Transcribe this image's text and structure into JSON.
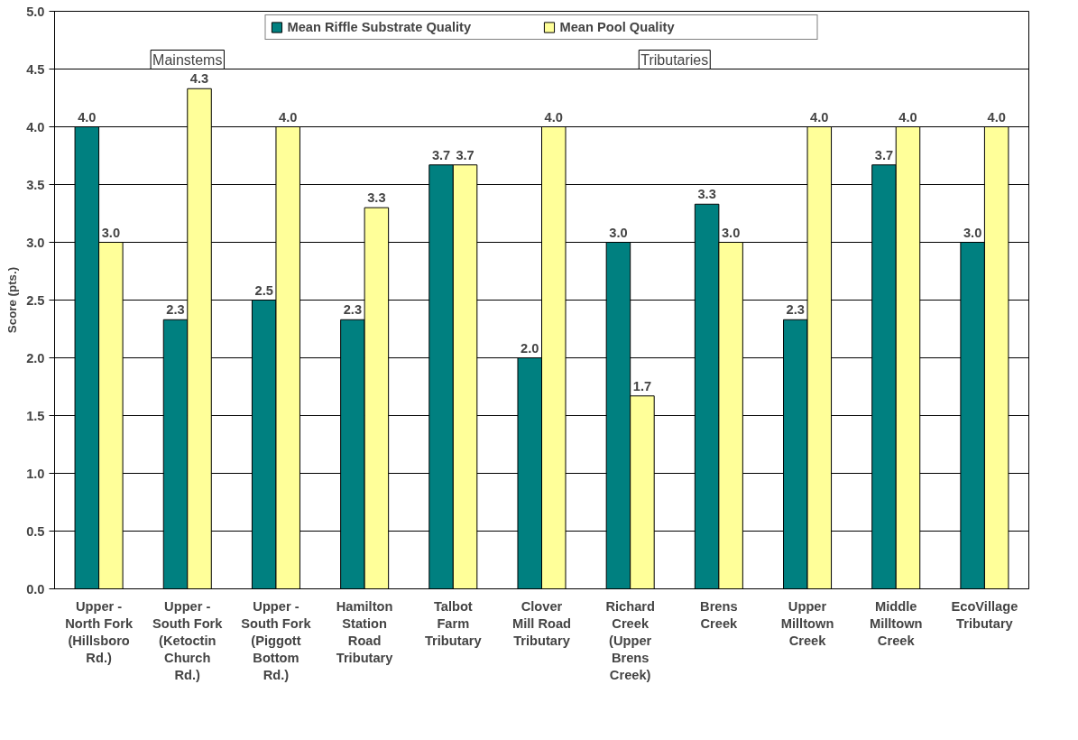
{
  "chart_data": {
    "type": "bar",
    "ylabel": "Score (pts.)",
    "categories": [
      "Upper - North Fork (Hillsboro Rd.)",
      "Upper - South Fork (Ketoctin Church Rd.)",
      "Upper - South Fork (Piggott Bottom Rd.)",
      "Hamilton Station Road Tributary",
      "Talbot Farm Tributary",
      "Clover Mill Road Tributary",
      "Richard Creek (Upper Brens Creek)",
      "Brens Creek",
      "Upper Milltown Creek",
      "Middle Milltown Creek",
      "EcoVillage Tributary"
    ],
    "series": [
      {
        "name": "Mean Riffle Substrate Quality",
        "color": "#008080",
        "values": [
          4.0,
          2.33,
          2.5,
          2.33,
          3.67,
          2.0,
          3.0,
          3.33,
          2.33,
          3.67,
          3.0
        ],
        "value_labels": [
          "4.0",
          "2.3",
          "2.5",
          "2.3",
          "3.7",
          "2.0",
          "3.0",
          "3.3",
          "2.3",
          "3.7",
          "3.0"
        ]
      },
      {
        "name": "Mean Pool Quality",
        "color": "#ffff99",
        "values": [
          3.0,
          4.33,
          4.0,
          3.3,
          3.67,
          4.0,
          1.67,
          3.0,
          4.0,
          4.0,
          4.0
        ],
        "value_labels": [
          "3.0",
          "4.3",
          "4.0",
          "3.3",
          "3.7",
          "4.0",
          "1.7",
          "3.0",
          "4.0",
          "4.0",
          "4.0"
        ]
      }
    ],
    "ylim": [
      0,
      5
    ],
    "yticks": [
      {
        "value": 0,
        "label": "0.0"
      },
      {
        "value": 0.5,
        "label": "0.5"
      },
      {
        "value": 1,
        "label": "1.0"
      },
      {
        "value": 1.5,
        "label": "1.5"
      },
      {
        "value": 2,
        "label": "2.0"
      },
      {
        "value": 2.5,
        "label": "2.5"
      },
      {
        "value": 3,
        "label": "3.0"
      },
      {
        "value": 3.5,
        "label": "3.5"
      },
      {
        "value": 4,
        "label": "4.0"
      },
      {
        "value": 4.5,
        "label": "4.5"
      },
      {
        "value": 5,
        "label": "5.0"
      }
    ],
    "annotations": [
      "Mainstems",
      "Tributaries"
    ],
    "grid": "y",
    "legend": "top"
  }
}
